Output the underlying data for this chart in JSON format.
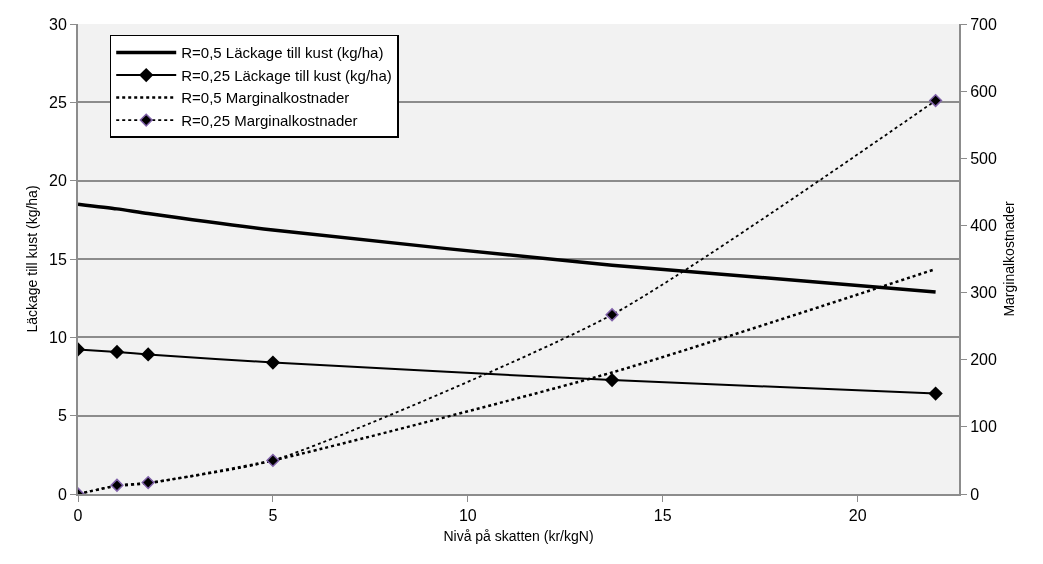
{
  "chart_data": {
    "type": "line",
    "xlabel": "Nivå på skatten (kr/kgN)",
    "ylabel": "Läckage till kust (kg/ha)",
    "y2label": "Marginalkostnader",
    "x": [
      0,
      1,
      1.8,
      5,
      13.7,
      22
    ],
    "series": [
      {
        "name": "R=0,5 Läckage till kust (kg/ha)",
        "color": "#000000",
        "values": [
          18.5,
          18.2,
          17.9,
          16.85,
          14.6,
          12.9
        ],
        "marker": "none",
        "line_style": "solid"
      },
      {
        "name": "R=0,25 Läckage till kust (kg/ha)",
        "color": "#000000",
        "values": [
          9.23,
          9.07,
          8.91,
          8.39,
          7.27,
          6.41
        ],
        "marker": "diamond",
        "line_style": "solid"
      },
      {
        "name": "R=0,5 Marginalkostnader",
        "color": "#000000",
        "values": [
          0,
          12,
          16,
          50,
          181,
          335
        ],
        "marker": "none",
        "line_style": "dotted",
        "axis": "y2"
      },
      {
        "name": "R=0,25 Marginalkostnader",
        "color": "#000000",
        "values": [
          0,
          13,
          17,
          50,
          267,
          586
        ],
        "marker": "diamond",
        "line_style": "dotted",
        "axis": "y2"
      }
    ],
    "xlim": [
      0,
      22.6
    ],
    "xticks": [
      0,
      5,
      10,
      15,
      20
    ],
    "ylim": [
      0,
      30
    ],
    "yticks": [
      0,
      5,
      10,
      15,
      20,
      25,
      30
    ],
    "y2lim": [
      0,
      700
    ],
    "y2ticks": [
      0,
      100,
      200,
      300,
      400,
      500,
      600,
      700
    ],
    "grid": "y",
    "legend": "top left"
  }
}
